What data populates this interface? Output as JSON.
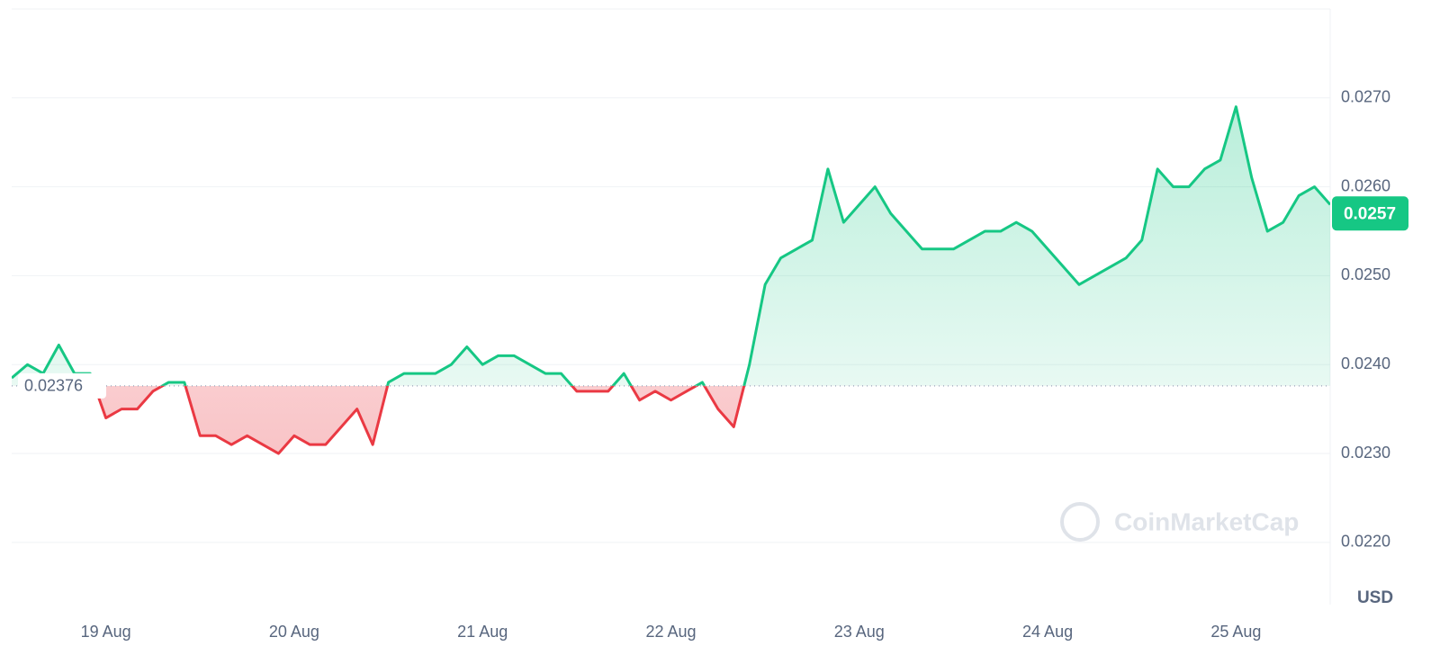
{
  "chart_data": {
    "type": "line",
    "categories": [
      null,
      null,
      null,
      null,
      null,
      null,
      "19 Aug",
      null,
      null,
      null,
      null,
      null,
      null,
      null,
      null,
      null,
      null,
      null,
      "20 Aug",
      null,
      null,
      null,
      null,
      null,
      null,
      null,
      null,
      null,
      null,
      null,
      "21 Aug",
      null,
      null,
      null,
      null,
      null,
      null,
      null,
      null,
      null,
      null,
      null,
      "22 Aug",
      null,
      null,
      null,
      null,
      null,
      null,
      null,
      null,
      null,
      null,
      null,
      "23 Aug",
      null,
      null,
      null,
      null,
      null,
      null,
      null,
      null,
      null,
      null,
      null,
      "24 Aug",
      null,
      null,
      null,
      null,
      null,
      null,
      null,
      null,
      null,
      null,
      null,
      "25 Aug",
      null,
      null,
      null,
      null,
      null,
      null
    ],
    "series": [
      {
        "values": [
          0.02385,
          0.024,
          0.0239,
          0.02422,
          0.0239,
          0.0239,
          0.0234,
          0.0235,
          0.0235,
          0.0237,
          0.0238,
          0.0238,
          0.0232,
          0.0232,
          0.0231,
          0.0232,
          0.0231,
          0.023,
          0.0232,
          0.0231,
          0.0231,
          0.0233,
          0.0235,
          0.0231,
          0.0238,
          0.0239,
          0.0239,
          0.0239,
          0.024,
          0.0242,
          0.024,
          0.0241,
          0.0241,
          0.024,
          0.0239,
          0.0239,
          0.0237,
          0.0237,
          0.0237,
          0.0239,
          0.0236,
          0.0237,
          0.0236,
          0.0237,
          0.0238,
          0.0235,
          0.0233,
          0.024,
          0.0249,
          0.0252,
          0.0253,
          0.0254,
          0.0262,
          0.0256,
          0.0258,
          0.026,
          0.0257,
          0.0255,
          0.0253,
          0.0253,
          0.0253,
          0.0254,
          0.0255,
          0.0255,
          0.0256,
          0.0255,
          0.0253,
          0.0251,
          0.0249,
          0.025,
          0.0251,
          0.0252,
          0.0254,
          0.0262,
          0.026,
          0.026,
          0.0262,
          0.0263,
          0.0269,
          0.0261,
          0.0255,
          0.0256,
          0.0259,
          0.026,
          0.0258
        ]
      }
    ],
    "baseline": 0.02376,
    "current_price": 0.0257,
    "up_color": "#16c784",
    "down_color": "#ea3943",
    "ylim": [
      0.0213,
      0.028
    ],
    "yticks": [
      {
        "value": 0.022,
        "label": "0.0220"
      },
      {
        "value": 0.023,
        "label": "0.0230"
      },
      {
        "value": 0.024,
        "label": "0.0240"
      },
      {
        "value": 0.025,
        "label": "0.0250"
      },
      {
        "value": 0.026,
        "label": "0.0260"
      },
      {
        "value": 0.027,
        "label": "0.0270"
      }
    ],
    "grid": true,
    "currency": "USD",
    "watermark": "CoinMarketCap"
  }
}
